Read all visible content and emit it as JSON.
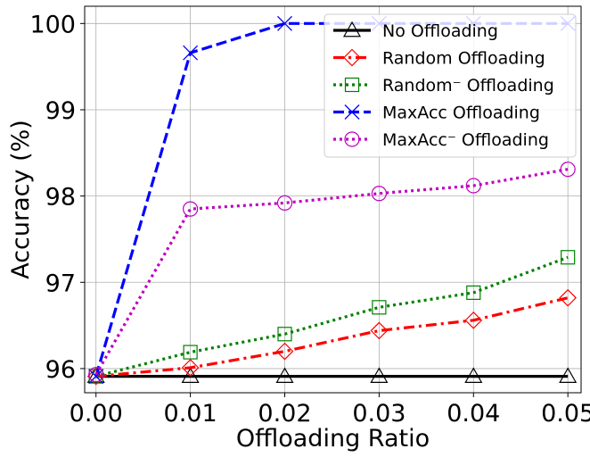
{
  "chart_data": {
    "type": "line",
    "title": "",
    "xlabel": "Offloading Ratio",
    "ylabel": "Accuracy (%)",
    "x": [
      0.0,
      0.01,
      0.02,
      0.03,
      0.04,
      0.05
    ],
    "x_tick_labels": [
      "0.00",
      "0.01",
      "0.02",
      "0.03",
      "0.04",
      "0.05"
    ],
    "y_ticks": [
      96,
      97,
      98,
      99,
      100
    ],
    "y_tick_labels": [
      "96",
      "97",
      "98",
      "99",
      "100"
    ],
    "xlim": [
      -0.0012,
      0.0514
    ],
    "ylim": [
      95.72,
      100.2
    ],
    "grid": true,
    "legend_position": "top-right",
    "series": [
      {
        "name": "No Offloading",
        "values": [
          95.91,
          95.91,
          95.91,
          95.91,
          95.91,
          95.91
        ],
        "color": "#000000",
        "dash": "solid",
        "marker": "triangle"
      },
      {
        "name": "Random Offloading",
        "values": [
          95.91,
          96.01,
          96.2,
          96.44,
          96.56,
          96.82
        ],
        "color": "#ff0000",
        "dash": "dashdot",
        "marker": "diamond"
      },
      {
        "name": "Random⁻ Offloading",
        "values": [
          95.91,
          96.19,
          96.4,
          96.71,
          96.88,
          97.29
        ],
        "color": "#008000",
        "dash": "dotted",
        "marker": "square"
      },
      {
        "name": "MaxAcc Offloading",
        "values": [
          95.91,
          99.66,
          100.0,
          100.0,
          100.0,
          100.0
        ],
        "color": "#0000ff",
        "dash": "dashed",
        "marker": "x"
      },
      {
        "name": "MaxAcc⁻ Offloading",
        "values": [
          95.93,
          97.85,
          97.92,
          98.03,
          98.12,
          98.31
        ],
        "color": "#bf00bf",
        "dash": "dotted",
        "marker": "circle"
      }
    ]
  }
}
